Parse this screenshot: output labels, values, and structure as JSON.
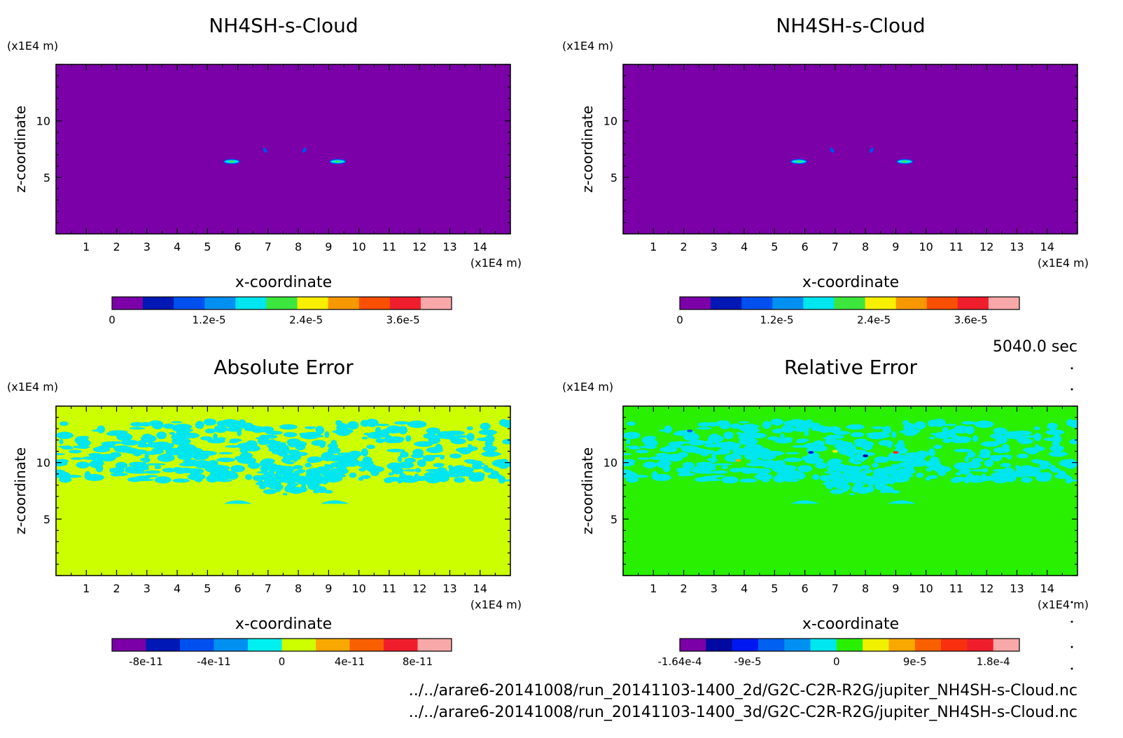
{
  "time_label": "5040.0 sec",
  "files": [
    "../../arare6-20141008/run_20141103-1400_2d/G2C-C2R-R2G/jupiter_NH4SH-s-Cloud.nc",
    "../../arare6-20141008/run_20141103-1400_3d/G2C-C2R-R2G/jupiter_NH4SH-s-Cloud.nc"
  ],
  "chart_data": [
    {
      "type": "heatmap",
      "title": "NH4SH-s-Cloud",
      "xlabel": "x-coordinate",
      "ylabel": "z-coordinate",
      "x_unit": "(x1E4 m)",
      "y_unit": "(x1E4 m)",
      "xlim": [
        0,
        15
      ],
      "ylim": [
        0,
        15
      ],
      "x_ticks": [
        "1",
        "2",
        "3",
        "4",
        "5",
        "6",
        "7",
        "8",
        "9",
        "10",
        "11",
        "12",
        "13",
        "14"
      ],
      "y_ticks": [
        "5",
        "10"
      ],
      "background_value": 0,
      "features": [
        {
          "x": 5.8,
          "z": 6.4,
          "shape": "blob"
        },
        {
          "x": 9.3,
          "z": 6.4,
          "shape": "blob"
        },
        {
          "x": 6.9,
          "z": 7.4,
          "shape": "streak"
        },
        {
          "x": 8.2,
          "z": 7.4,
          "shape": "streak"
        }
      ],
      "colorbar": {
        "colors": [
          "#7b00a8",
          "#0018b4",
          "#0050f0",
          "#0090f0",
          "#00e6ee",
          "#3ce63c",
          "#f8f000",
          "#f89800",
          "#f85000",
          "#f01e2c",
          "#f8a8a8"
        ],
        "tick_labels": [
          "0",
          "1.2e-5",
          "2.4e-5",
          "3.6e-5"
        ]
      }
    },
    {
      "type": "heatmap",
      "title": "NH4SH-s-Cloud",
      "xlabel": "x-coordinate",
      "ylabel": "z-coordinate",
      "x_unit": "(x1E4 m)",
      "y_unit": "(x1E4 m)",
      "xlim": [
        0,
        15
      ],
      "ylim": [
        0,
        15
      ],
      "x_ticks": [
        "1",
        "2",
        "3",
        "4",
        "5",
        "6",
        "7",
        "8",
        "9",
        "10",
        "11",
        "12",
        "13",
        "14"
      ],
      "y_ticks": [
        "5",
        "10"
      ],
      "background_value": 0,
      "features": [
        {
          "x": 5.8,
          "z": 6.4,
          "shape": "blob"
        },
        {
          "x": 9.3,
          "z": 6.4,
          "shape": "blob"
        },
        {
          "x": 6.9,
          "z": 7.4,
          "shape": "streak"
        },
        {
          "x": 8.2,
          "z": 7.4,
          "shape": "streak"
        }
      ],
      "colorbar": {
        "colors": [
          "#7b00a8",
          "#0018b4",
          "#0050f0",
          "#0090f0",
          "#00e6ee",
          "#3ce63c",
          "#f8f000",
          "#f89800",
          "#f85000",
          "#f01e2c",
          "#f8a8a8"
        ],
        "tick_labels": [
          "0",
          "1.2e-5",
          "2.4e-5",
          "3.6e-5"
        ]
      }
    },
    {
      "type": "heatmap",
      "title": "Absolute Error",
      "xlabel": "x-coordinate",
      "ylabel": "z-coordinate",
      "x_unit": "(x1E4 m)",
      "y_unit": "(x1E4 m)",
      "xlim": [
        0,
        15
      ],
      "ylim": [
        0,
        15
      ],
      "x_ticks": [
        "1",
        "2",
        "3",
        "4",
        "5",
        "6",
        "7",
        "8",
        "9",
        "10",
        "11",
        "12",
        "13",
        "14"
      ],
      "y_ticks": [
        "5",
        "10"
      ],
      "background_color": "#ccff00",
      "noise_color": "#00e6ee",
      "colorbar": {
        "colors": [
          "#7b00a8",
          "#0018b4",
          "#0050f0",
          "#0090f0",
          "#00f0f0",
          "#ccff00",
          "#f8a800",
          "#f86000",
          "#f01e2c",
          "#f8a8a8"
        ],
        "tick_labels": [
          "-8e-11",
          "-4e-11",
          "0",
          "4e-11",
          "8e-11"
        ]
      }
    },
    {
      "type": "heatmap",
      "title": "Relative Error",
      "xlabel": "x-coordinate",
      "ylabel": "z-coordinate",
      "x_unit": "(x1E4 m)",
      "y_unit": "(x1E4 m)",
      "xlim": [
        0,
        15
      ],
      "ylim": [
        0,
        15
      ],
      "x_ticks": [
        "1",
        "2",
        "3",
        "4",
        "5",
        "6",
        "7",
        "8",
        "9",
        "10",
        "11",
        "12",
        "13",
        "14"
      ],
      "y_ticks": [
        "5",
        "10"
      ],
      "background_color": "#28f000",
      "noise_color": "#00e6ee",
      "colorbar": {
        "colors": [
          "#7b00a8",
          "#000aa0",
          "#0018f0",
          "#0060f0",
          "#0090f0",
          "#00e6ee",
          "#28f000",
          "#f0f000",
          "#f8a800",
          "#f86000",
          "#f83010",
          "#f01e2c",
          "#f8a8a8"
        ],
        "tick_labels": [
          "-1.64e-4",
          "-9e-5",
          "0",
          "9e-5",
          "1.8e-4"
        ]
      }
    }
  ]
}
